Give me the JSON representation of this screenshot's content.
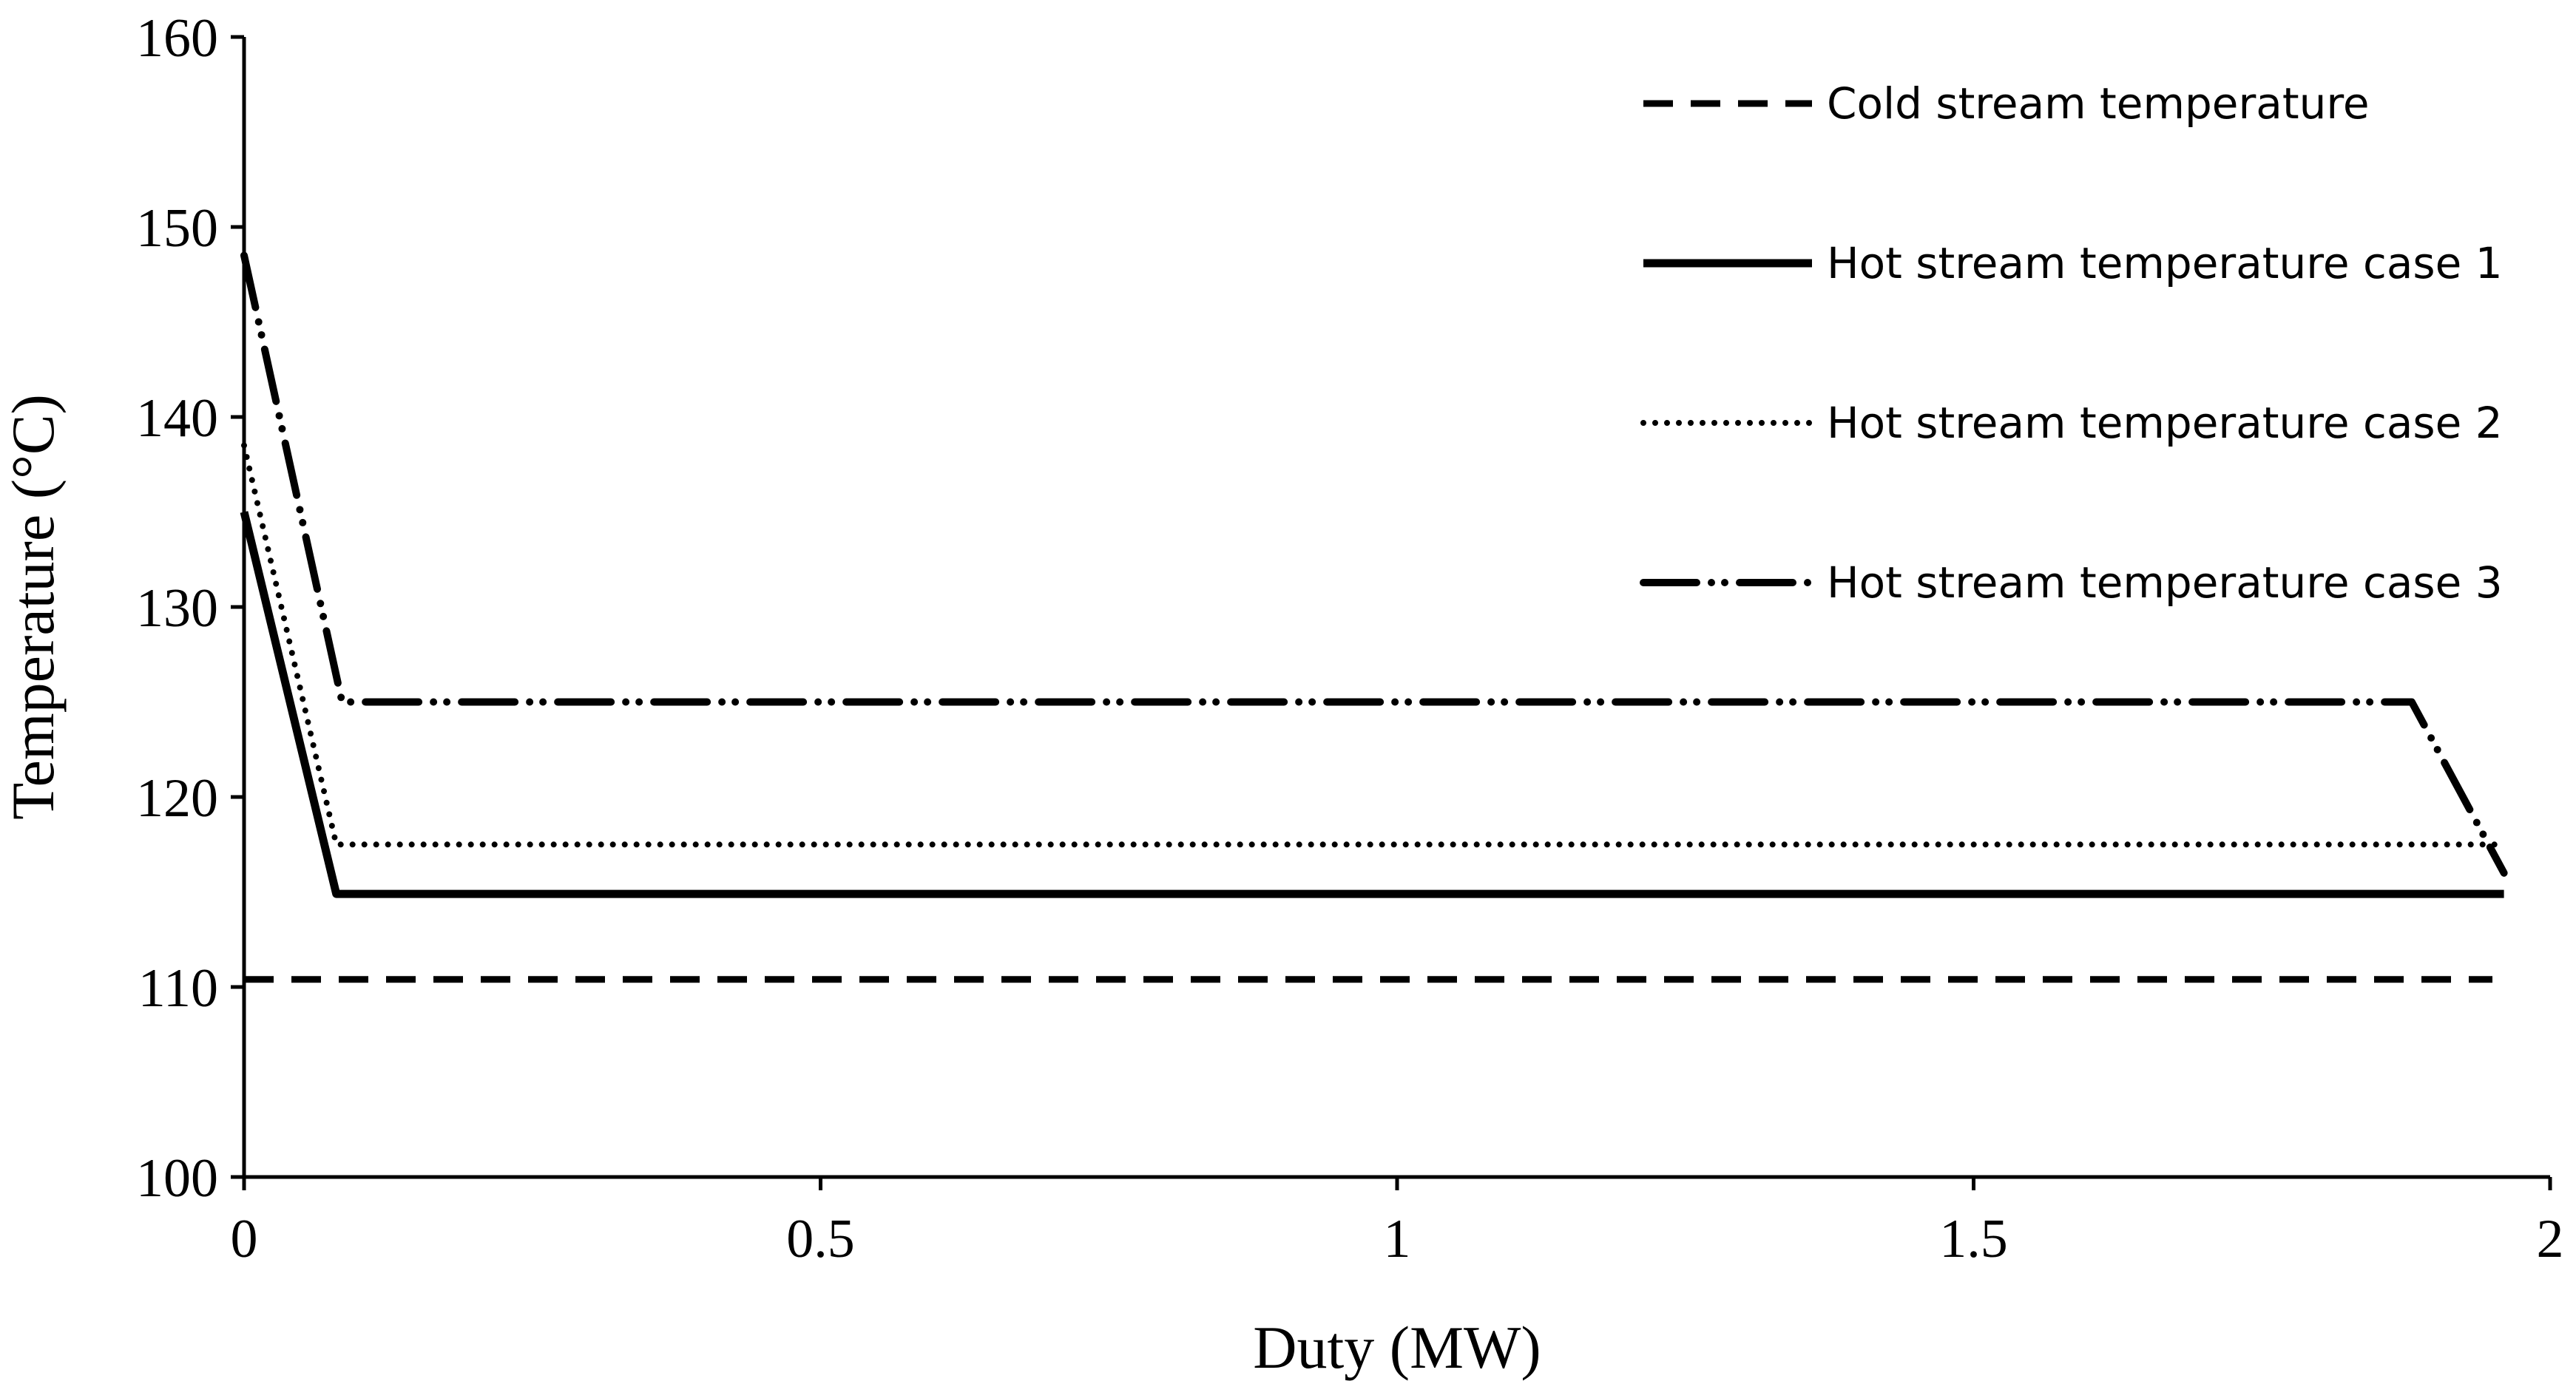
{
  "chart_data": {
    "type": "line",
    "title": "",
    "xlabel": "Duty (MW)",
    "ylabel": "Temperature (°C)",
    "xlim": [
      0,
      2
    ],
    "ylim": [
      100,
      160
    ],
    "xticks": [
      {
        "value": 0,
        "label": "0"
      },
      {
        "value": 0.5,
        "label": "0.5"
      },
      {
        "value": 1,
        "label": "1"
      },
      {
        "value": 1.5,
        "label": "1.5"
      },
      {
        "value": 2,
        "label": "2"
      }
    ],
    "yticks": [
      {
        "value": 100,
        "label": "100"
      },
      {
        "value": 110,
        "label": "110"
      },
      {
        "value": 120,
        "label": "120"
      },
      {
        "value": 130,
        "label": "130"
      },
      {
        "value": 140,
        "label": "140"
      },
      {
        "value": 150,
        "label": "150"
      },
      {
        "value": 160,
        "label": "160"
      }
    ],
    "grid": false,
    "legend_position": "top-right",
    "series": [
      {
        "name": "Cold stream temperature",
        "style": "dashed",
        "color": "#000000",
        "points": [
          [
            0,
            110.4
          ],
          [
            1.95,
            110.4
          ]
        ]
      },
      {
        "name": "Hot stream temperature case 1",
        "style": "solid",
        "color": "#000000",
        "points": [
          [
            0,
            135
          ],
          [
            0.08,
            114.9
          ],
          [
            1.96,
            114.9
          ]
        ]
      },
      {
        "name": "Hot stream temperature case 2",
        "style": "dotted",
        "color": "#000000",
        "points": [
          [
            0,
            138.5
          ],
          [
            0.08,
            117.5
          ],
          [
            1.96,
            117.5
          ]
        ]
      },
      {
        "name": "Hot stream temperature case 3",
        "style": "dash-dot-dot",
        "color": "#000000",
        "points": [
          [
            0,
            148.5
          ],
          [
            0.085,
            125
          ],
          [
            1.88,
            125
          ],
          [
            1.96,
            116
          ]
        ]
      }
    ]
  }
}
